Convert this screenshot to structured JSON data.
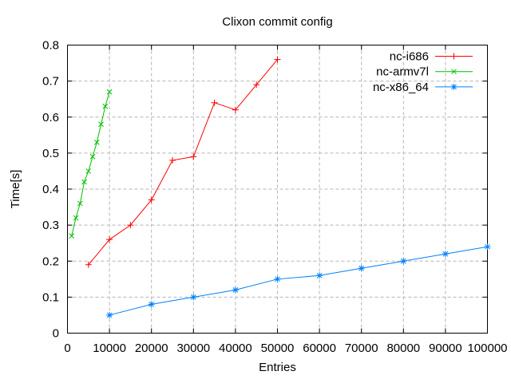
{
  "chart_data": {
    "type": "line",
    "title": "Clixon commit config",
    "xlabel": "Entries",
    "ylabel": "Time[s]",
    "xlim": [
      0,
      100000
    ],
    "ylim": [
      0,
      0.8
    ],
    "xticks": [
      0,
      10000,
      20000,
      30000,
      40000,
      50000,
      60000,
      70000,
      80000,
      90000,
      100000
    ],
    "xtick_labels": [
      "0",
      "10000",
      "20000",
      "30000",
      "40000",
      "50000",
      "60000",
      "70000",
      "80000",
      "90000",
      "100000"
    ],
    "yticks": [
      0,
      0.1,
      0.2,
      0.3,
      0.4,
      0.5,
      0.6,
      0.7,
      0.8
    ],
    "ytick_labels": [
      "0",
      "0.1",
      "0.2",
      "0.3",
      "0.4",
      "0.5",
      "0.6",
      "0.7",
      "0.8"
    ],
    "grid": true,
    "legend_position": "top-right-inside",
    "colors": {
      "background": "#ffffff",
      "border": "#000000",
      "grid": "#b4b4b4",
      "text": "#000000"
    },
    "series": [
      {
        "name": "nc-i686",
        "color": "#ff0000",
        "marker": "plus",
        "points": [
          [
            5000,
            0.19
          ],
          [
            10000,
            0.26
          ],
          [
            15000,
            0.3
          ],
          [
            20000,
            0.37
          ],
          [
            25000,
            0.48
          ],
          [
            30000,
            0.49
          ],
          [
            35000,
            0.64
          ],
          [
            40000,
            0.62
          ],
          [
            45000,
            0.69
          ],
          [
            50000,
            0.76
          ]
        ]
      },
      {
        "name": "nc-armv7l",
        "color": "#00c000",
        "marker": "cross",
        "points": [
          [
            1000,
            0.27
          ],
          [
            2000,
            0.32
          ],
          [
            3000,
            0.36
          ],
          [
            4000,
            0.42
          ],
          [
            5000,
            0.45
          ],
          [
            6000,
            0.49
          ],
          [
            7000,
            0.53
          ],
          [
            8000,
            0.58
          ],
          [
            9000,
            0.63
          ],
          [
            10000,
            0.67
          ]
        ]
      },
      {
        "name": "nc-x86_64",
        "color": "#0080ff",
        "marker": "asterisk",
        "points": [
          [
            10000,
            0.05
          ],
          [
            20000,
            0.08
          ],
          [
            30000,
            0.1
          ],
          [
            40000,
            0.12
          ],
          [
            50000,
            0.15
          ],
          [
            60000,
            0.16
          ],
          [
            70000,
            0.18
          ],
          [
            80000,
            0.2
          ],
          [
            90000,
            0.22
          ],
          [
            100000,
            0.24
          ]
        ]
      }
    ]
  }
}
